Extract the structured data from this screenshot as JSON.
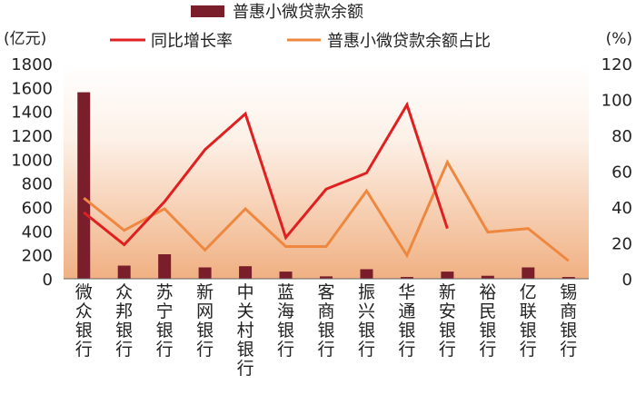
{
  "chart_data": {
    "type": "bar",
    "categories": [
      "微众银行",
      "众邦银行",
      "苏宁银行",
      "新网银行",
      "中关村银行",
      "蓝海银行",
      "客商银行",
      "振兴银行",
      "华通银行",
      "新安银行",
      "裕民银行",
      "亿联银行",
      "锡商银行"
    ],
    "left_axis": {
      "unit": "(亿元)",
      "ylim": [
        0,
        1800
      ],
      "ticks": [
        "0",
        "200",
        "400",
        "600",
        "800",
        "1000",
        "1200",
        "1400",
        "1600",
        "1800"
      ]
    },
    "right_axis": {
      "unit": "(%)",
      "ylim": [
        0,
        120
      ],
      "ticks": [
        "0",
        "20",
        "40",
        "60",
        "80",
        "100",
        "120"
      ]
    },
    "series": [
      {
        "name": "普惠小微贷款余额",
        "kind": "bar",
        "axis": "left",
        "color": "#7a1e2c",
        "values": [
          1560,
          110,
          205,
          95,
          105,
          60,
          20,
          80,
          15,
          60,
          25,
          95,
          15
        ]
      },
      {
        "name": "同比增长率",
        "kind": "line",
        "axis": "right",
        "color": "#e02020",
        "values": [
          37,
          19,
          43,
          72,
          92,
          23,
          50,
          59,
          97,
          28,
          null,
          null,
          null
        ]
      },
      {
        "name": "普惠小微贷款余额占比",
        "kind": "line",
        "axis": "right",
        "color": "#ee8840",
        "values": [
          45,
          27,
          39,
          16,
          39,
          18,
          18,
          49,
          13,
          65,
          26,
          28,
          10
        ]
      }
    ],
    "grid": false,
    "legend": "top",
    "background": [
      "#ffffff",
      "#f0b082"
    ]
  }
}
